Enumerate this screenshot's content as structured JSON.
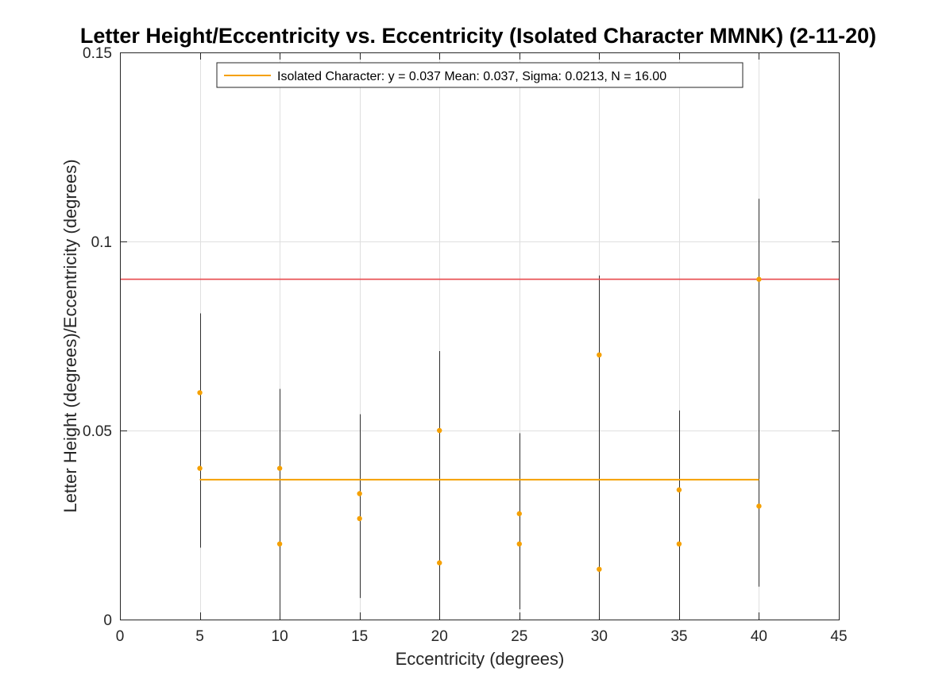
{
  "chart_data": {
    "type": "scatter",
    "title": "Letter Height/Eccentricity vs. Eccentricity (Isolated Character MMNK) (2-11-20)",
    "xlabel": "Eccentricity (degrees)",
    "ylabel": "Letter Height (degrees)/Eccentricity (degrees)",
    "xlim": [
      0,
      45
    ],
    "ylim": [
      0,
      0.15
    ],
    "xticks": [
      0,
      5,
      10,
      15,
      20,
      25,
      30,
      35,
      40,
      45
    ],
    "yticks": [
      0,
      0.05,
      0.1,
      0.15
    ],
    "ytick_labels": [
      "0",
      "0.05",
      "0.1",
      "0.15"
    ],
    "grid": true,
    "legend_position": "top-center",
    "series": [
      {
        "name": "Isolated Character: y = 0.037 Mean: 0.037, Sigma: 0.0213, N = 16.00",
        "color": "#f5a000",
        "points": [
          {
            "x": 5,
            "y": 0.06
          },
          {
            "x": 5,
            "y": 0.04
          },
          {
            "x": 10,
            "y": 0.04
          },
          {
            "x": 10,
            "y": 0.02
          },
          {
            "x": 15,
            "y": 0.0333
          },
          {
            "x": 15,
            "y": 0.0267
          },
          {
            "x": 20,
            "y": 0.05
          },
          {
            "x": 20,
            "y": 0.015
          },
          {
            "x": 25,
            "y": 0.028
          },
          {
            "x": 25,
            "y": 0.02
          },
          {
            "x": 30,
            "y": 0.07
          },
          {
            "x": 30,
            "y": 0.0133
          },
          {
            "x": 35,
            "y": 0.0343
          },
          {
            "x": 35,
            "y": 0.02
          },
          {
            "x": 40,
            "y": 0.09
          },
          {
            "x": 40,
            "y": 0.03
          }
        ],
        "fit_line": {
          "y": 0.037,
          "x_start": 5,
          "x_end": 40
        }
      }
    ],
    "error_bars": [
      {
        "x": 5,
        "low": 0.019,
        "high": 0.081
      },
      {
        "x": 10,
        "low": 0.0,
        "high": 0.061
      },
      {
        "x": 15,
        "low": 0.0057,
        "high": 0.0543
      },
      {
        "x": 20,
        "low": 0.0,
        "high": 0.071
      },
      {
        "x": 25,
        "low": 0.0027,
        "high": 0.0493
      },
      {
        "x": 30,
        "low": 0.0,
        "high": 0.091
      },
      {
        "x": 35,
        "low": 0.0,
        "high": 0.0553
      },
      {
        "x": 40,
        "low": 0.0087,
        "high": 0.1113
      }
    ],
    "reference_line": {
      "y": 0.09,
      "color": "#e8484c"
    },
    "colors": {
      "points": "#f5a000",
      "fit_line": "#f5a000",
      "reference_line": "#e8484c",
      "error_bars": "#000000",
      "grid": "#dfdfdf",
      "axes": "#262626"
    }
  }
}
